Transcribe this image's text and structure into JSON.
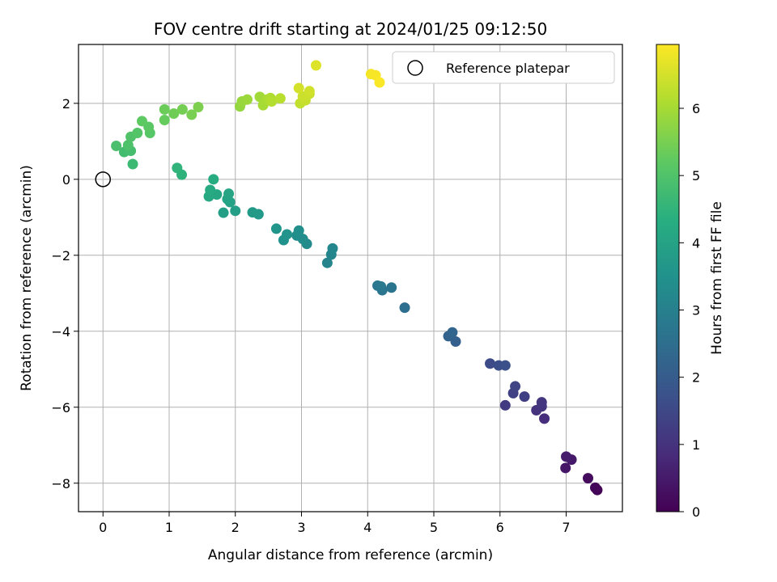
{
  "chart_data": {
    "type": "scatter",
    "title": "FOV centre drift starting at 2024/01/25 09:12:50",
    "xlabel": "Angular distance from reference (arcmin)",
    "ylabel": "Rotation from reference (arcmin)",
    "xlim": [
      -0.37,
      7.85
    ],
    "ylim": [
      -8.75,
      3.55
    ],
    "xticks": [
      0,
      1,
      2,
      3,
      4,
      5,
      6,
      7
    ],
    "yticks": [
      -8,
      -6,
      -4,
      -2,
      0,
      2
    ],
    "grid": true,
    "legend": {
      "placement": "top-right",
      "entries": [
        "Reference platepar"
      ]
    },
    "reference_point": {
      "x": 0,
      "y": 0
    },
    "colorbar": {
      "label": "Hours from first FF file",
      "min": 0,
      "max": 6.95,
      "ticks": [
        0,
        1,
        2,
        3,
        4,
        5,
        6
      ],
      "colormap": "viridis"
    },
    "points": [
      {
        "x": 7.47,
        "y": -8.18,
        "t": 0.05
      },
      {
        "x": 7.44,
        "y": -8.12,
        "t": 0.1
      },
      {
        "x": 7.33,
        "y": -7.87,
        "t": 0.2
      },
      {
        "x": 6.99,
        "y": -7.6,
        "t": 0.4
      },
      {
        "x": 7.08,
        "y": -7.38,
        "t": 0.5
      },
      {
        "x": 7.0,
        "y": -7.3,
        "t": 0.55
      },
      {
        "x": 6.67,
        "y": -6.3,
        "t": 0.9
      },
      {
        "x": 6.55,
        "y": -6.08,
        "t": 1.0
      },
      {
        "x": 6.63,
        "y": -5.98,
        "t": 1.05
      },
      {
        "x": 6.63,
        "y": -5.87,
        "t": 1.1
      },
      {
        "x": 6.08,
        "y": -5.95,
        "t": 1.2
      },
      {
        "x": 6.37,
        "y": -5.72,
        "t": 1.3
      },
      {
        "x": 6.2,
        "y": -5.63,
        "t": 1.35
      },
      {
        "x": 6.23,
        "y": -5.45,
        "t": 1.4
      },
      {
        "x": 5.85,
        "y": -4.85,
        "t": 1.6
      },
      {
        "x": 5.98,
        "y": -4.9,
        "t": 1.65
      },
      {
        "x": 6.08,
        "y": -4.9,
        "t": 1.7
      },
      {
        "x": 5.33,
        "y": -4.27,
        "t": 2.1
      },
      {
        "x": 5.22,
        "y": -4.13,
        "t": 2.2
      },
      {
        "x": 5.28,
        "y": -4.03,
        "t": 2.25
      },
      {
        "x": 4.56,
        "y": -3.38,
        "t": 2.5
      },
      {
        "x": 4.36,
        "y": -2.85,
        "t": 2.65
      },
      {
        "x": 4.22,
        "y": -2.92,
        "t": 2.7
      },
      {
        "x": 4.15,
        "y": -2.8,
        "t": 2.75
      },
      {
        "x": 4.2,
        "y": -2.82,
        "t": 2.8
      },
      {
        "x": 3.39,
        "y": -2.2,
        "t": 3.1
      },
      {
        "x": 3.45,
        "y": -1.98,
        "t": 3.15
      },
      {
        "x": 3.47,
        "y": -1.82,
        "t": 3.2
      },
      {
        "x": 3.08,
        "y": -1.7,
        "t": 3.3
      },
      {
        "x": 3.02,
        "y": -1.57,
        "t": 3.35
      },
      {
        "x": 2.93,
        "y": -1.48,
        "t": 3.4
      },
      {
        "x": 2.96,
        "y": -1.35,
        "t": 3.45
      },
      {
        "x": 2.73,
        "y": -1.6,
        "t": 3.5
      },
      {
        "x": 2.78,
        "y": -1.45,
        "t": 3.55
      },
      {
        "x": 2.62,
        "y": -1.3,
        "t": 3.6
      },
      {
        "x": 2.35,
        "y": -0.92,
        "t": 3.7
      },
      {
        "x": 2.26,
        "y": -0.87,
        "t": 3.75
      },
      {
        "x": 2.0,
        "y": -0.83,
        "t": 3.85
      },
      {
        "x": 1.82,
        "y": -0.88,
        "t": 3.9
      },
      {
        "x": 1.92,
        "y": -0.6,
        "t": 3.95
      },
      {
        "x": 1.88,
        "y": -0.52,
        "t": 4.0
      },
      {
        "x": 1.9,
        "y": -0.38,
        "t": 4.05
      },
      {
        "x": 1.72,
        "y": -0.4,
        "t": 4.1
      },
      {
        "x": 1.6,
        "y": -0.45,
        "t": 4.15
      },
      {
        "x": 1.62,
        "y": -0.28,
        "t": 4.2
      },
      {
        "x": 1.67,
        "y": 0.0,
        "t": 4.25
      },
      {
        "x": 1.19,
        "y": 0.12,
        "t": 4.45
      },
      {
        "x": 1.12,
        "y": 0.3,
        "t": 4.5
      },
      {
        "x": 0.45,
        "y": 0.4,
        "t": 4.7
      },
      {
        "x": 0.32,
        "y": 0.72,
        "t": 4.8
      },
      {
        "x": 0.42,
        "y": 0.75,
        "t": 4.85
      },
      {
        "x": 0.2,
        "y": 0.88,
        "t": 4.9
      },
      {
        "x": 0.38,
        "y": 0.9,
        "t": 4.95
      },
      {
        "x": 0.42,
        "y": 1.12,
        "t": 5.0
      },
      {
        "x": 0.52,
        "y": 1.22,
        "t": 5.05
      },
      {
        "x": 0.71,
        "y": 1.22,
        "t": 5.1
      },
      {
        "x": 0.69,
        "y": 1.38,
        "t": 5.15
      },
      {
        "x": 0.59,
        "y": 1.53,
        "t": 5.2
      },
      {
        "x": 0.93,
        "y": 1.56,
        "t": 5.3
      },
      {
        "x": 0.93,
        "y": 1.84,
        "t": 5.35
      },
      {
        "x": 1.07,
        "y": 1.73,
        "t": 5.4
      },
      {
        "x": 1.2,
        "y": 1.84,
        "t": 5.45
      },
      {
        "x": 1.34,
        "y": 1.7,
        "t": 5.5
      },
      {
        "x": 1.44,
        "y": 1.9,
        "t": 5.55
      },
      {
        "x": 2.07,
        "y": 1.92,
        "t": 5.8
      },
      {
        "x": 2.1,
        "y": 2.05,
        "t": 5.85
      },
      {
        "x": 2.18,
        "y": 2.1,
        "t": 5.9
      },
      {
        "x": 2.37,
        "y": 2.17,
        "t": 5.95
      },
      {
        "x": 2.42,
        "y": 1.95,
        "t": 6.0
      },
      {
        "x": 2.48,
        "y": 2.1,
        "t": 6.05
      },
      {
        "x": 2.53,
        "y": 2.14,
        "t": 6.1
      },
      {
        "x": 2.55,
        "y": 2.05,
        "t": 6.15
      },
      {
        "x": 2.68,
        "y": 2.13,
        "t": 6.2
      },
      {
        "x": 2.98,
        "y": 2.0,
        "t": 6.3
      },
      {
        "x": 3.06,
        "y": 2.08,
        "t": 6.35
      },
      {
        "x": 3.12,
        "y": 2.25,
        "t": 6.4
      },
      {
        "x": 3.02,
        "y": 2.18,
        "t": 6.4
      },
      {
        "x": 3.12,
        "y": 2.32,
        "t": 6.45
      },
      {
        "x": 2.96,
        "y": 2.4,
        "t": 6.5
      },
      {
        "x": 3.22,
        "y": 3.0,
        "t": 6.6
      },
      {
        "x": 4.05,
        "y": 2.77,
        "t": 6.85
      },
      {
        "x": 4.12,
        "y": 2.74,
        "t": 6.88
      },
      {
        "x": 4.18,
        "y": 2.55,
        "t": 6.92
      }
    ]
  }
}
